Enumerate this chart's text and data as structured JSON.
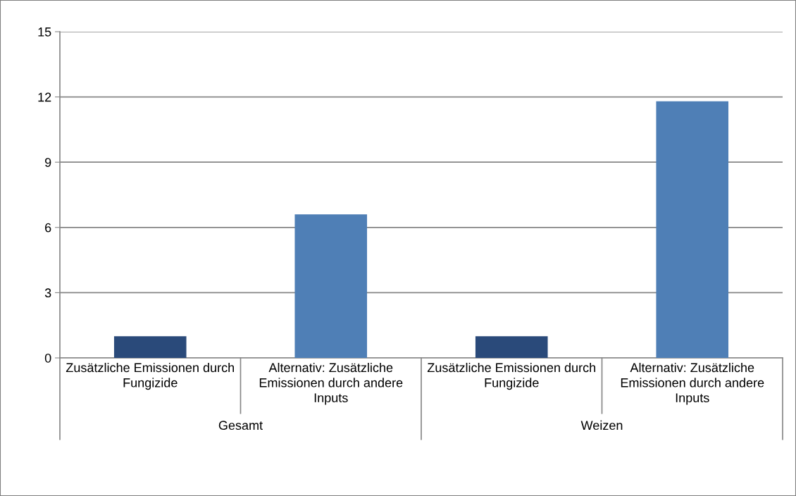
{
  "chart_data": {
    "type": "bar",
    "categories": [
      "Zusätzliche Emissionen durch Fungizide",
      "Alternativ: Zusätzliche Emissionen durch andere Inputs",
      "Zusätzliche Emissionen durch Fungizide",
      "Alternativ: Zusätzliche Emissionen durch andere Inputs"
    ],
    "values": [
      1.0,
      6.6,
      1.0,
      11.8
    ],
    "colors": [
      "#2a4a7a",
      "#4f7fb6",
      "#2a4a7a",
      "#4f7fb6"
    ],
    "annotations": [
      "Gesamt",
      "Weizen"
    ],
    "ylim": [
      0,
      15
    ],
    "yticks": [
      0,
      3,
      6,
      9,
      12,
      15
    ],
    "grid": "y",
    "legend": false
  }
}
